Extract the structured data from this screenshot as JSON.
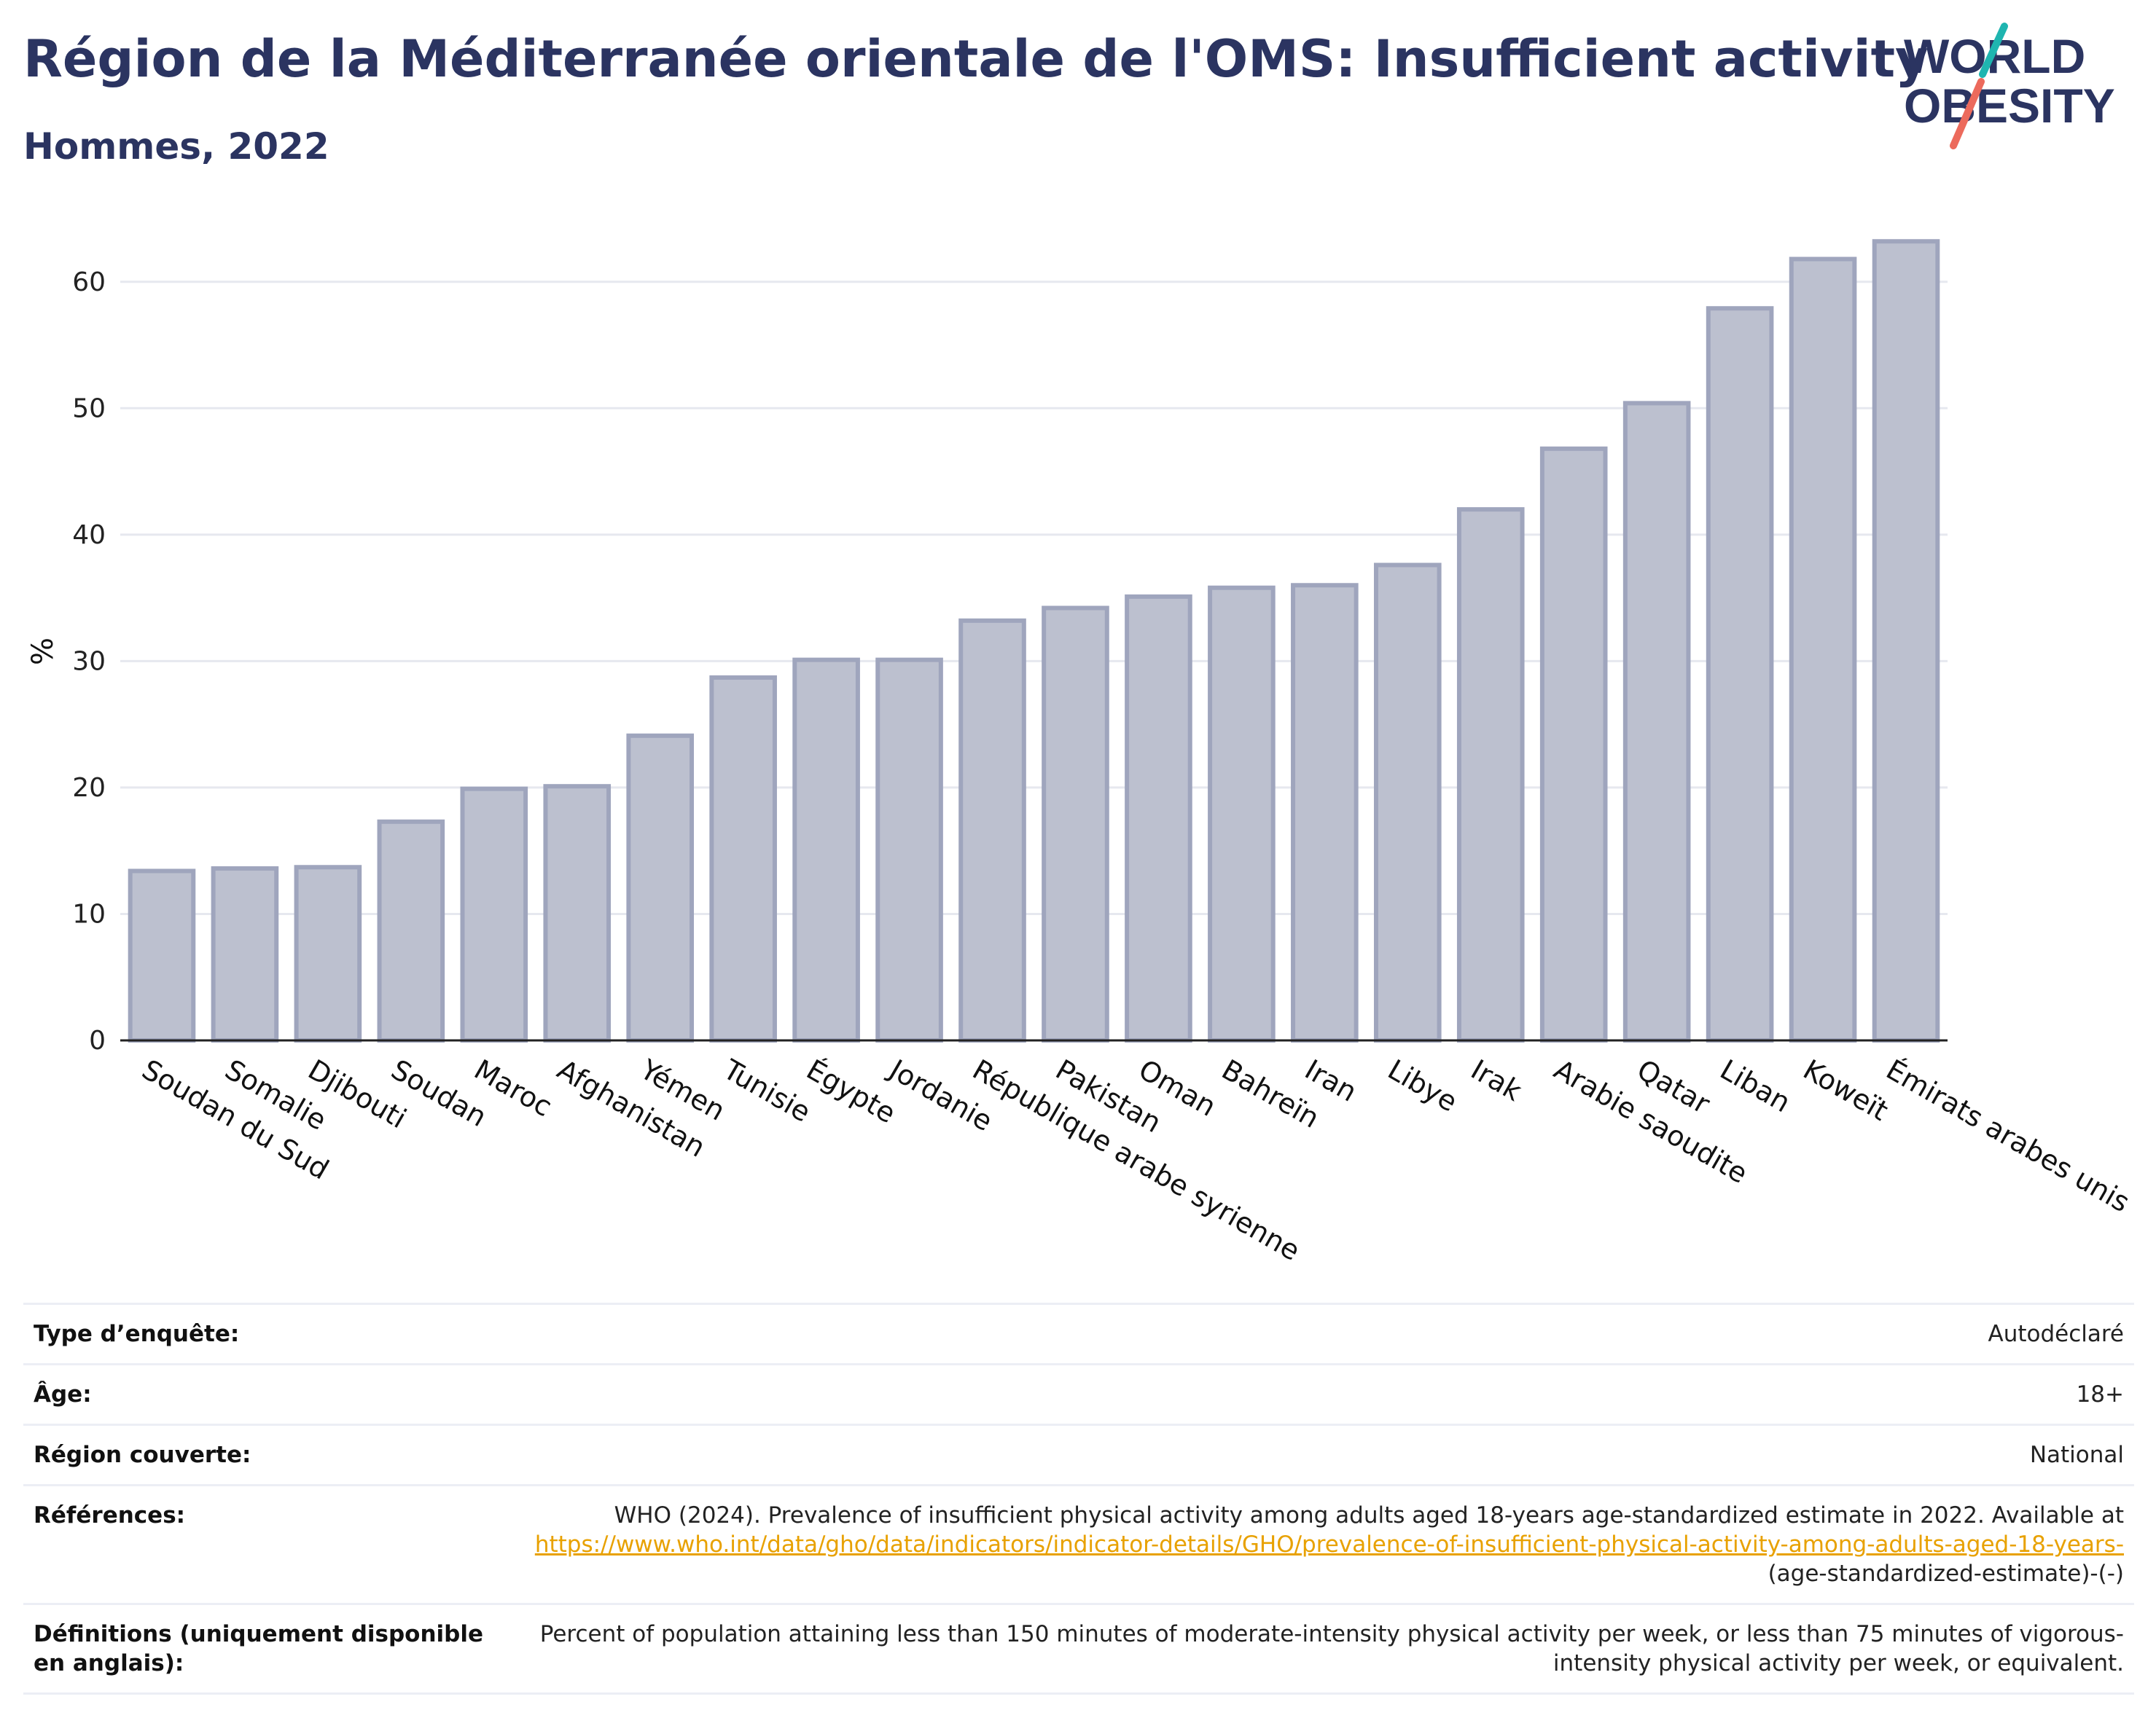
{
  "header": {
    "title": "Région de la Méditerranée orientale de l'OMS: Insufficient activity",
    "subtitle": "Hommes, 2022"
  },
  "logo": {
    "line1": "WORLD",
    "line2": "OBESITY",
    "colors": {
      "text": "#2b3461",
      "slash_teal": "#1fb5b0",
      "slash_coral": "#ec6a5c"
    }
  },
  "chart_data": {
    "type": "bar",
    "ylabel": "%",
    "ylim": [
      0,
      65
    ],
    "yticks": [
      0,
      10,
      20,
      30,
      40,
      50,
      60
    ],
    "grid": true,
    "bar_fill": "#bcc0cf",
    "bar_stroke": "#9fa5bd",
    "categories": [
      "Soudan du Sud",
      "Somalie",
      "Djibouti",
      "Soudan",
      "Maroc",
      "Afghanistan",
      "Yémen",
      "Tunisie",
      "Égypte",
      "Jordanie",
      "République arabe syrienne",
      "Pakistan",
      "Oman",
      "Bahreïn",
      "Iran",
      "Libye",
      "Irak",
      "Arabie saoudite",
      "Qatar",
      "Liban",
      "Koweït",
      "Émirats arabes unis"
    ],
    "values": [
      13.4,
      13.6,
      13.7,
      17.3,
      19.9,
      20.1,
      24.1,
      28.7,
      30.1,
      30.1,
      33.2,
      34.2,
      35.1,
      35.8,
      36.0,
      37.6,
      42.0,
      46.8,
      50.4,
      57.9,
      61.8,
      63.2
    ]
  },
  "info": [
    {
      "key": "Type d’enquête:",
      "value": "Autodéclaré"
    },
    {
      "key": "Âge:",
      "value": "18+"
    },
    {
      "key": "Région couverte:",
      "value": "National"
    },
    {
      "key": "Références:",
      "value": "WHO (2024). Prevalence of insufficient physical activity among adults aged 18-years age-standardized estimate in 2022. Available at",
      "link": "https://www.who.int/data/gho/data/indicators/indicator-details/GHO/prevalence-of-insufficient-physical-activity-among-adults-aged-18-years-",
      "suffix": "(age-standardized-estimate)-(-)"
    },
    {
      "key": "Définitions (uniquement disponible en anglais):",
      "value": "Percent of population attaining less than 150 minutes of moderate-intensity physical activity per week, or less than 75 minutes of vigorous-intensity physical activity per week, or equivalent."
    }
  ]
}
